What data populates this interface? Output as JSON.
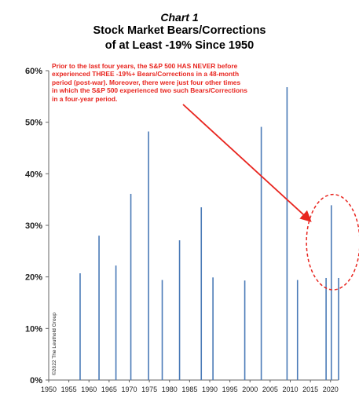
{
  "chart_data": {
    "type": "bar",
    "chart_number": "Chart 1",
    "title_lines": [
      "Stock Market Bears/Corrections",
      "of at Least -19% Since 1950"
    ],
    "annotation_lines": [
      "Prior to the last four years, the S&P 500 HAS NEVER before",
      "experienced THREE -19%+ Bears/Corrections in a 48-month",
      "period (post-war). Moreover, there were just four other times",
      "in which the S&P 500 experienced two such Bears/Corrections",
      "in a four-year period."
    ],
    "copyright": "©2022 The Leuthold Group",
    "xlabel": "",
    "ylabel": "",
    "xlim": [
      1950,
      2022
    ],
    "ylim": [
      0,
      60
    ],
    "x_ticks": [
      1950,
      1955,
      1960,
      1965,
      1970,
      1975,
      1980,
      1985,
      1990,
      1995,
      2000,
      2005,
      2010,
      2015,
      2020
    ],
    "x_tick_labels": [
      "1950",
      "1955",
      "1960",
      "1965",
      "1970",
      "1975",
      "1980",
      "1985",
      "1990",
      "1995",
      "2000",
      "2005",
      "2010",
      "2015",
      "2020"
    ],
    "y_ticks": [
      0,
      10,
      20,
      30,
      40,
      50,
      60
    ],
    "y_tick_labels": [
      "0%",
      "10%",
      "20%",
      "30%",
      "40%",
      "50%",
      "60%"
    ],
    "bar_color": "#4a7ab7",
    "highlight_color": "#e8251f",
    "grid": false,
    "series": [
      {
        "x": [
          1957.8,
          1962.5,
          1966.7,
          1970.4,
          1974.8,
          1978.2,
          1982.5,
          1987.9,
          1990.8,
          1998.7,
          2002.8,
          2009.2,
          2011.8,
          2018.9,
          2020.2,
          2022.0
        ],
        "values": [
          20.7,
          28.0,
          22.2,
          36.1,
          48.2,
          19.4,
          27.1,
          33.5,
          19.9,
          19.3,
          49.1,
          56.8,
          19.4,
          19.8,
          33.9,
          19.8
        ]
      }
    ]
  }
}
